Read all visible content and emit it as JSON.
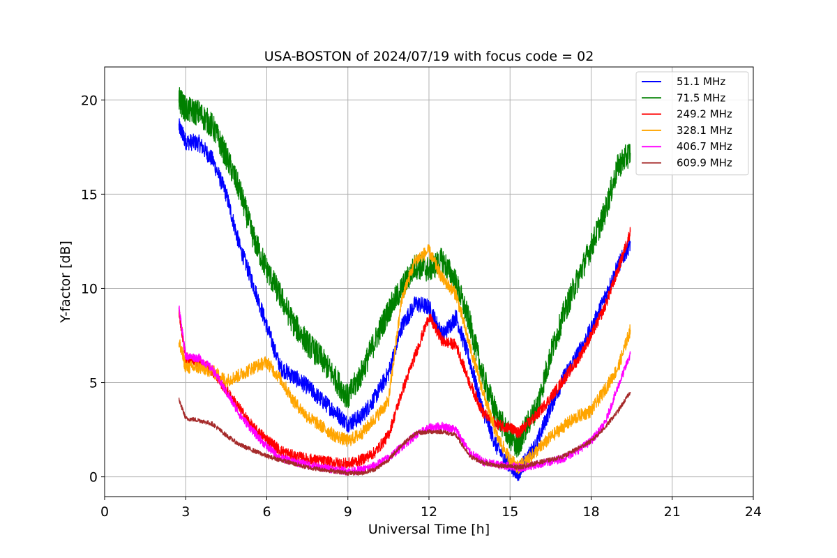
{
  "chart_data": {
    "type": "line",
    "title": "USA-BOSTON of 2024/07/19 with focus code = 02",
    "xlabel": "Universal Time [h]",
    "ylabel": "Y-factor [dB]",
    "xlim": [
      0,
      24
    ],
    "ylim": [
      -1.05,
      21.75
    ],
    "xticks": [
      0,
      3,
      6,
      9,
      12,
      15,
      18,
      21,
      24
    ],
    "yticks": [
      0,
      5,
      10,
      15,
      20
    ],
    "grid": true,
    "legend_position": "top-right",
    "series": [
      {
        "name": "51.1 MHz",
        "color": "#0000ff",
        "noise": 0.45,
        "x": [
          2.75,
          3.0,
          3.5,
          4.0,
          4.5,
          5.0,
          5.5,
          6.0,
          6.5,
          7.0,
          7.5,
          8.0,
          8.5,
          9.0,
          9.5,
          10.0,
          10.5,
          11.0,
          11.5,
          12.0,
          12.5,
          13.0,
          13.5,
          14.0,
          14.5,
          15.0,
          15.3,
          15.5,
          16.0,
          16.5,
          17.0,
          17.5,
          18.0,
          18.5,
          19.0,
          19.45
        ],
        "y": [
          18.6,
          17.8,
          17.7,
          16.8,
          15.0,
          12.2,
          10.2,
          8.0,
          5.8,
          5.3,
          4.8,
          4.1,
          3.5,
          2.8,
          3.2,
          4.2,
          5.5,
          8.0,
          9.2,
          9.0,
          7.5,
          8.5,
          6.2,
          3.5,
          1.6,
          0.6,
          0.2,
          0.7,
          1.8,
          3.7,
          5.3,
          6.5,
          7.8,
          9.5,
          11.2,
          12.4
        ]
      },
      {
        "name": "71.5 MHz",
        "color": "#008000",
        "noise": 0.7,
        "x": [
          2.75,
          3.0,
          3.5,
          4.0,
          4.5,
          5.0,
          5.5,
          6.0,
          6.5,
          7.0,
          7.5,
          8.0,
          8.5,
          9.0,
          9.5,
          10.0,
          10.5,
          11.0,
          11.5,
          12.0,
          12.5,
          13.0,
          13.5,
          14.0,
          14.5,
          15.0,
          15.3,
          15.5,
          16.0,
          16.5,
          17.0,
          17.5,
          18.0,
          18.5,
          19.0,
          19.45
        ],
        "y": [
          20.0,
          19.5,
          19.3,
          18.6,
          17.0,
          15.2,
          12.7,
          11.0,
          9.6,
          8.1,
          7.1,
          6.3,
          5.3,
          4.2,
          5.5,
          7.2,
          8.8,
          10.0,
          11.2,
          11.0,
          11.5,
          10.3,
          8.2,
          5.3,
          3.3,
          2.1,
          1.6,
          2.4,
          3.7,
          6.5,
          8.7,
          10.5,
          12.2,
          14.0,
          16.5,
          17.2
        ]
      },
      {
        "name": "249.2 MHz",
        "color": "#ff0000",
        "noise": 0.3,
        "x": [
          2.75,
          3.0,
          3.5,
          4.0,
          4.5,
          5.0,
          5.5,
          6.0,
          6.5,
          7.0,
          7.5,
          8.0,
          8.5,
          9.0,
          9.5,
          10.0,
          10.5,
          11.0,
          11.5,
          12.0,
          12.5,
          13.0,
          13.5,
          14.0,
          14.5,
          15.0,
          15.3,
          15.5,
          16.0,
          16.5,
          17.0,
          17.5,
          18.0,
          18.5,
          19.0,
          19.45
        ],
        "y": [
          8.8,
          6.3,
          6.1,
          5.6,
          4.6,
          3.6,
          2.6,
          2.0,
          1.4,
          1.1,
          0.95,
          0.85,
          0.75,
          0.7,
          0.9,
          1.3,
          2.2,
          4.5,
          6.5,
          8.5,
          7.2,
          7.0,
          5.0,
          3.4,
          2.8,
          2.6,
          2.3,
          2.6,
          3.3,
          4.2,
          5.2,
          6.2,
          7.5,
          9.0,
          11.0,
          13.0
        ]
      },
      {
        "name": "328.1 MHz",
        "color": "#ffa500",
        "noise": 0.35,
        "x": [
          2.75,
          3.0,
          3.5,
          4.0,
          4.5,
          5.0,
          5.5,
          6.0,
          6.5,
          7.0,
          7.5,
          8.0,
          8.5,
          9.0,
          9.5,
          10.0,
          10.5,
          11.0,
          11.5,
          12.0,
          12.5,
          13.0,
          13.5,
          14.0,
          14.5,
          15.0,
          15.3,
          15.5,
          16.0,
          16.5,
          17.0,
          17.5,
          18.0,
          18.5,
          19.0,
          19.45
        ],
        "y": [
          7.2,
          5.8,
          5.8,
          5.6,
          5.1,
          5.4,
          5.8,
          6.1,
          5.2,
          4.0,
          3.2,
          2.7,
          2.2,
          1.9,
          2.3,
          3.1,
          4.0,
          9.5,
          11.5,
          12.0,
          10.5,
          9.7,
          7.0,
          4.5,
          2.2,
          0.9,
          0.5,
          0.7,
          1.4,
          2.1,
          2.7,
          3.2,
          3.5,
          4.6,
          5.8,
          7.8
        ]
      },
      {
        "name": "406.7 MHz",
        "color": "#ff00ff",
        "noise": 0.22,
        "x": [
          2.75,
          3.0,
          3.5,
          4.0,
          4.5,
          5.0,
          5.5,
          6.0,
          6.5,
          7.0,
          7.5,
          8.0,
          8.5,
          9.0,
          9.5,
          10.0,
          10.5,
          11.0,
          11.5,
          12.0,
          12.5,
          13.0,
          13.5,
          14.0,
          14.5,
          15.0,
          15.3,
          15.5,
          16.0,
          16.5,
          17.0,
          17.5,
          18.0,
          18.5,
          19.0,
          19.45
        ],
        "y": [
          9.0,
          6.4,
          6.3,
          5.7,
          4.5,
          3.3,
          2.4,
          1.6,
          1.0,
          0.8,
          0.65,
          0.5,
          0.4,
          0.3,
          0.35,
          0.6,
          1.0,
          1.6,
          2.2,
          2.6,
          2.7,
          2.5,
          1.3,
          0.8,
          0.65,
          0.55,
          0.5,
          0.5,
          0.65,
          0.8,
          1.0,
          1.4,
          1.9,
          2.8,
          4.8,
          6.5
        ]
      },
      {
        "name": "609.9 MHz",
        "color": "#a52a2a",
        "noise": 0.12,
        "x": [
          2.75,
          3.0,
          3.5,
          4.0,
          4.5,
          5.0,
          5.5,
          6.0,
          6.5,
          7.0,
          7.5,
          8.0,
          8.5,
          9.0,
          9.5,
          10.0,
          10.5,
          11.0,
          11.5,
          12.0,
          12.5,
          13.0,
          13.5,
          14.0,
          14.5,
          15.0,
          15.3,
          15.5,
          16.0,
          16.5,
          17.0,
          17.5,
          18.0,
          18.5,
          19.0,
          19.45
        ],
        "y": [
          4.1,
          3.1,
          3.0,
          2.8,
          2.2,
          1.7,
          1.4,
          1.1,
          0.9,
          0.7,
          0.5,
          0.4,
          0.3,
          0.2,
          0.2,
          0.4,
          0.9,
          1.7,
          2.3,
          2.4,
          2.4,
          2.2,
          1.1,
          0.75,
          0.6,
          0.55,
          0.5,
          0.55,
          0.75,
          0.9,
          1.1,
          1.5,
          1.9,
          2.6,
          3.5,
          4.5
        ]
      }
    ]
  }
}
